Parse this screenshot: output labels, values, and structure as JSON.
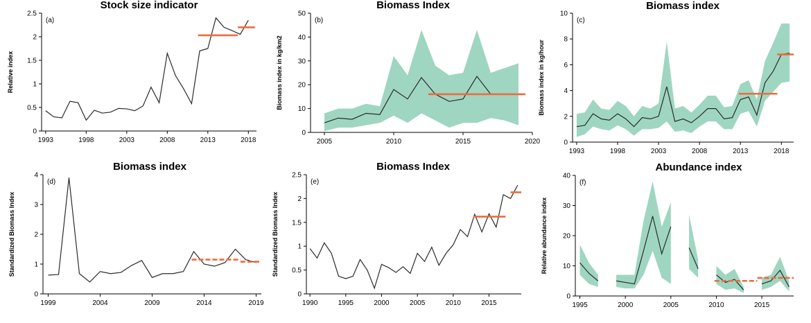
{
  "chart_data": [
    {
      "id": "a",
      "type": "line",
      "panel_label": "(a)",
      "title": "Stock size indicator",
      "ylabel": "Relative index",
      "xlabel": "",
      "xlim": [
        1992.5,
        2019
      ],
      "ylim": [
        0,
        2.5
      ],
      "xticks": [
        1993,
        1998,
        2003,
        2008,
        2013,
        2018
      ],
      "yticks": [
        0,
        0.5,
        1,
        1.5,
        2,
        2.5
      ],
      "x": [
        1993,
        1994,
        1995,
        1996,
        1997,
        1998,
        1999,
        2000,
        2001,
        2002,
        2003,
        2004,
        2005,
        2006,
        2007,
        2008,
        2009,
        2010,
        2011,
        2012,
        2013,
        2014,
        2015,
        2016,
        2017,
        2018
      ],
      "values": [
        0.43,
        0.3,
        0.28,
        0.63,
        0.6,
        0.23,
        0.44,
        0.38,
        0.4,
        0.48,
        0.47,
        0.43,
        0.53,
        0.93,
        0.6,
        1.65,
        1.18,
        0.9,
        0.58,
        1.7,
        1.75,
        2.4,
        2.2,
        2.13,
        2.05,
        2.35
      ],
      "ref_lines": [
        {
          "x0": 2011.8,
          "x1": 2016.7,
          "y": 2.03,
          "style": "solid"
        },
        {
          "x0": 2016.7,
          "x1": 2018.8,
          "y": 2.2,
          "style": "solid"
        }
      ]
    },
    {
      "id": "b",
      "type": "area",
      "panel_label": "(b)",
      "title": "Biomass Index",
      "ylabel": "Biomass index in kg/km2",
      "xlabel": "",
      "xlim": [
        2004,
        2020
      ],
      "ylim": [
        0,
        50
      ],
      "xticks": [
        2005,
        2010,
        2015,
        2020
      ],
      "yticks": [
        0,
        10,
        20,
        30,
        40,
        50
      ],
      "x": [
        2005,
        2006,
        2007,
        2008,
        2009,
        2010,
        2011,
        2012,
        2013,
        2014,
        2015,
        2016,
        2017,
        2018,
        2019
      ],
      "values": [
        4,
        6,
        5.5,
        8,
        7.5,
        18,
        14,
        23,
        16,
        13,
        14,
        23.5,
        16,
        null,
        null
      ],
      "upper": [
        8,
        10,
        10,
        12,
        11,
        32,
        24,
        43,
        28,
        24,
        25,
        43,
        25,
        27,
        29
      ],
      "lower": [
        0.5,
        2,
        2,
        3,
        4,
        7,
        4,
        8,
        5,
        2,
        4,
        4,
        6,
        5,
        3
      ],
      "ref_lines": [
        {
          "x0": 2012.5,
          "x1": 2019.5,
          "y": 16,
          "style": "solid"
        }
      ]
    },
    {
      "id": "c",
      "type": "area",
      "panel_label": "(c)",
      "title": "Biomass index",
      "ylabel": "Biomass index in kg/hour",
      "xlabel": "",
      "xlim": [
        1992.5,
        2019.5
      ],
      "ylim": [
        0,
        10
      ],
      "xticks": [
        1993,
        1998,
        2003,
        2008,
        2013,
        2018
      ],
      "yticks": [
        0,
        2,
        4,
        6,
        8,
        10
      ],
      "x": [
        1993,
        1994,
        1995,
        1996,
        1997,
        1998,
        1999,
        2000,
        2001,
        2002,
        2003,
        2004,
        2005,
        2006,
        2007,
        2008,
        2009,
        2010,
        2011,
        2012,
        2013,
        2014,
        2015,
        2016,
        2017,
        2018,
        2019
      ],
      "values": [
        1.2,
        1.3,
        2.2,
        1.8,
        1.7,
        2.2,
        1.8,
        1.2,
        1.9,
        1.8,
        2.0,
        4.3,
        1.6,
        1.8,
        1.5,
        2.0,
        2.6,
        2.6,
        1.8,
        1.9,
        3.3,
        3.5,
        2.1,
        4.6,
        5.5,
        6.8,
        6.9
      ],
      "upper": [
        2.2,
        2.3,
        3.3,
        2.6,
        2.5,
        3.2,
        2.8,
        2.0,
        2.8,
        2.6,
        3.0,
        7.8,
        2.6,
        2.8,
        2.3,
        2.9,
        3.6,
        3.6,
        2.7,
        2.8,
        4.5,
        4.8,
        3.3,
        6.3,
        7.7,
        9.2,
        9.2
      ],
      "lower": [
        0.4,
        0.6,
        1.2,
        1.0,
        0.9,
        1.3,
        1.0,
        0.5,
        1.0,
        1.0,
        1.1,
        1.6,
        0.8,
        0.9,
        0.7,
        1.2,
        1.6,
        1.6,
        1.0,
        1.0,
        2.2,
        2.4,
        1.2,
        3.2,
        3.9,
        4.6,
        4.7
      ],
      "ref_lines": [
        {
          "x0": 2012.8,
          "x1": 2017.5,
          "y": 3.75,
          "style": "solid"
        },
        {
          "x0": 2017.5,
          "x1": 2019.5,
          "y": 6.8,
          "style": "solid"
        }
      ]
    },
    {
      "id": "d",
      "type": "line",
      "panel_label": "(d)",
      "title": "Biomass index",
      "ylabel": "Standardized Biomass Index",
      "xlabel": "",
      "xlim": [
        1998.5,
        2019.5
      ],
      "ylim": [
        0,
        4
      ],
      "xticks": [
        1999,
        2004,
        2009,
        2014,
        2019
      ],
      "yticks": [
        0,
        1,
        2,
        3,
        4
      ],
      "x": [
        1999,
        2000,
        2001,
        2002,
        2003,
        2004,
        2005,
        2006,
        2007,
        2008,
        2009,
        2010,
        2011,
        2012,
        2013,
        2014,
        2015,
        2016,
        2017,
        2018,
        2019
      ],
      "values": [
        0.63,
        0.65,
        3.9,
        0.68,
        0.4,
        0.75,
        0.68,
        0.72,
        0.95,
        1.12,
        0.55,
        0.68,
        0.68,
        0.75,
        1.42,
        1.0,
        0.93,
        1.05,
        1.5,
        1.15,
        1.05
      ],
      "ref_lines": [
        {
          "x0": 2012.8,
          "x1": 2017.5,
          "y": 1.15,
          "style": "dashed"
        },
        {
          "x0": 2017.5,
          "x1": 2019.3,
          "y": 1.08,
          "style": "dashed"
        }
      ]
    },
    {
      "id": "e",
      "type": "line",
      "panel_label": "(e)",
      "title": "Biomass Index",
      "ylabel": "Standardized Biomass Index",
      "xlabel": "",
      "xlim": [
        1989.5,
        2019.5
      ],
      "ylim": [
        0,
        2.5
      ],
      "xticks": [
        1990,
        1995,
        2000,
        2005,
        2010,
        2015
      ],
      "yticks": [
        0,
        0.5,
        1,
        1.5,
        2,
        2.5
      ],
      "x": [
        1990,
        1991,
        1992,
        1993,
        1994,
        1995,
        1996,
        1997,
        1998,
        1999,
        2000,
        2001,
        2002,
        2003,
        2004,
        2005,
        2006,
        2007,
        2008,
        2009,
        2010,
        2011,
        2012,
        2013,
        2014,
        2015,
        2016,
        2017,
        2018,
        2019
      ],
      "values": [
        0.95,
        0.75,
        1.07,
        0.85,
        0.37,
        0.32,
        0.37,
        0.72,
        0.5,
        0.12,
        0.62,
        0.55,
        0.45,
        0.57,
        0.43,
        0.85,
        0.68,
        0.98,
        0.6,
        0.85,
        1.03,
        1.35,
        1.2,
        1.67,
        1.3,
        1.68,
        1.4,
        2.08,
        2.0,
        2.28
      ],
      "ref_lines": [
        {
          "x0": 2012.8,
          "x1": 2017.3,
          "y": 1.62,
          "style": "solid"
        },
        {
          "x0": 2018.0,
          "x1": 2019.5,
          "y": 2.13,
          "style": "solid"
        }
      ]
    },
    {
      "id": "f",
      "type": "area",
      "panel_label": "(f)",
      "title": "Abundance index",
      "ylabel": "Relative abundance index",
      "xlabel": "",
      "xlim": [
        1994.5,
        2018.5
      ],
      "ylim": [
        0,
        40
      ],
      "xticks": [
        1995,
        2000,
        2005,
        2010,
        2015
      ],
      "yticks": [
        0,
        10,
        20,
        30,
        40
      ],
      "segments": [
        {
          "x": [
            1995,
            1996,
            1997
          ],
          "values": [
            11,
            7.5,
            5
          ],
          "upper": [
            17,
            11,
            7
          ],
          "lower": [
            7,
            4,
            3
          ]
        },
        {
          "x": [
            1999,
            2000,
            2001,
            2002,
            2003,
            2004,
            2005
          ],
          "values": [
            5,
            4.5,
            4,
            15,
            26.5,
            14,
            23
          ],
          "upper": [
            7,
            7,
            7,
            25,
            38,
            23,
            31
          ],
          "lower": [
            3,
            2.5,
            2.5,
            7,
            15,
            6,
            4
          ]
        },
        {
          "x": [
            2007,
            2008
          ],
          "values": [
            16,
            9
          ],
          "upper": [
            27,
            12
          ],
          "lower": [
            9,
            6
          ]
        },
        {
          "x": [
            2010,
            2011,
            2012,
            2013
          ],
          "values": [
            7,
            4.5,
            5.5,
            2
          ],
          "upper": [
            10,
            7,
            9,
            3
          ],
          "lower": [
            4,
            2,
            2.5,
            1
          ]
        },
        {
          "x": [
            2015,
            2016,
            2017,
            2018
          ],
          "values": [
            4,
            5,
            8.5,
            3
          ],
          "upper": [
            6,
            7,
            13,
            5
          ],
          "lower": [
            2,
            3,
            5,
            1.5
          ]
        }
      ],
      "ref_lines": [
        {
          "x0": 2009.8,
          "x1": 2014.5,
          "y": 5,
          "style": "dashed"
        },
        {
          "x0": 2014.5,
          "x1": 2018.5,
          "y": 6,
          "style": "dashed"
        }
      ]
    }
  ],
  "colors": {
    "line": "#2a2a2a",
    "band": "#9fd6c2",
    "ref": "#f06a3a",
    "axis": "#000000"
  }
}
